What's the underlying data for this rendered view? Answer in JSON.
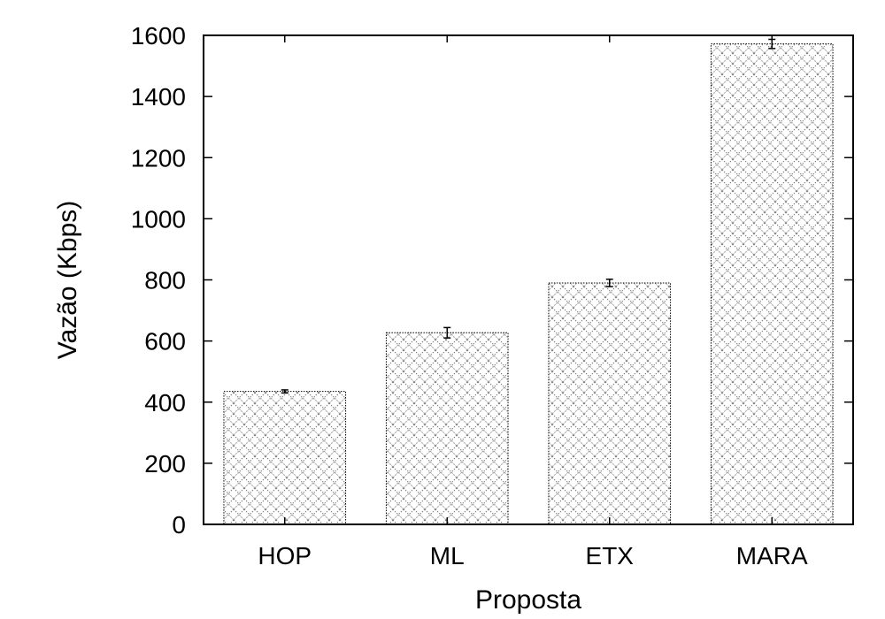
{
  "chart_data": {
    "type": "bar",
    "title": "",
    "xlabel": "Proposta",
    "ylabel": "Vazão (Kbps)",
    "categories": [
      "HOP",
      "ML",
      "ETX",
      "MARA"
    ],
    "values": [
      435,
      627,
      790,
      1572
    ],
    "error": [
      5,
      17,
      12,
      15
    ],
    "ylim": [
      0,
      1600
    ],
    "yticks": [
      0,
      200,
      400,
      600,
      800,
      1000,
      1200,
      1400,
      1600
    ],
    "grid": false,
    "legend": "none",
    "colors": {
      "bar_pattern": "#707070",
      "bar_outline": "#000000",
      "axis": "#000000"
    }
  }
}
